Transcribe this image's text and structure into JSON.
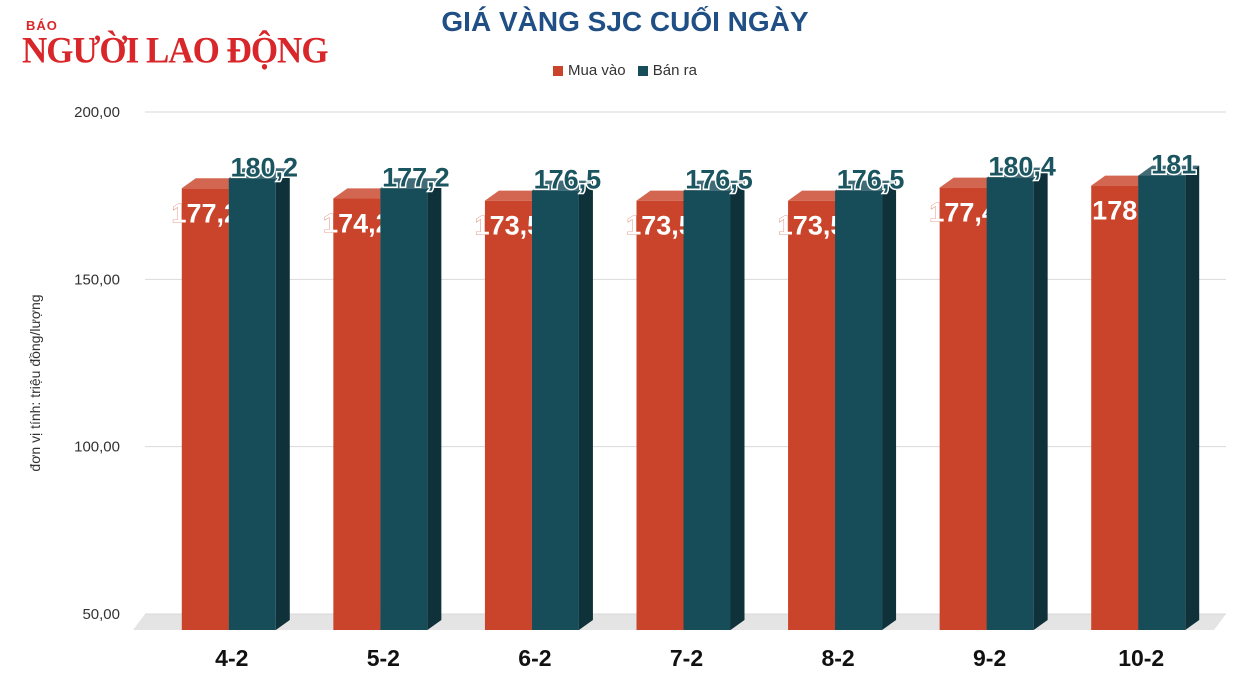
{
  "publisher": {
    "small": "BÁO",
    "name": "NGƯỜI LAO ĐỘNG"
  },
  "colors": {
    "mua_vao": "#c9442a",
    "ban_ra": "#174c59",
    "publisher": "#d8262a",
    "title": "#1f4f85"
  },
  "chart_data": {
    "type": "bar",
    "title": "GIÁ VÀNG SJC CUỐI NGÀY",
    "xlabel": "",
    "ylabel": "đơn vị tính: triệu đồng/lượng",
    "ylim": [
      50,
      200
    ],
    "yticks": [
      50,
      100,
      150,
      200
    ],
    "ytick_labels": [
      "50,00",
      "100,00",
      "150,00",
      "200,00"
    ],
    "grid": true,
    "legend_position": "top",
    "categories": [
      "4-2",
      "5-2",
      "6-2",
      "7-2",
      "8-2",
      "9-2",
      "10-2"
    ],
    "series": [
      {
        "name": "Mua vào",
        "color": "#c9442a",
        "values": [
          177.2,
          174.2,
          173.5,
          173.5,
          173.5,
          177.4,
          178
        ],
        "labels": [
          "177,2",
          "174,2",
          "173,5",
          "173,5",
          "173,5",
          "177,4",
          "178"
        ]
      },
      {
        "name": "Bán ra",
        "color": "#174c59",
        "values": [
          180.2,
          177.2,
          176.5,
          176.5,
          176.5,
          180.4,
          181
        ],
        "labels": [
          "180,2",
          "177,2",
          "176,5",
          "176,5",
          "176,5",
          "180,4",
          "181"
        ]
      }
    ]
  }
}
